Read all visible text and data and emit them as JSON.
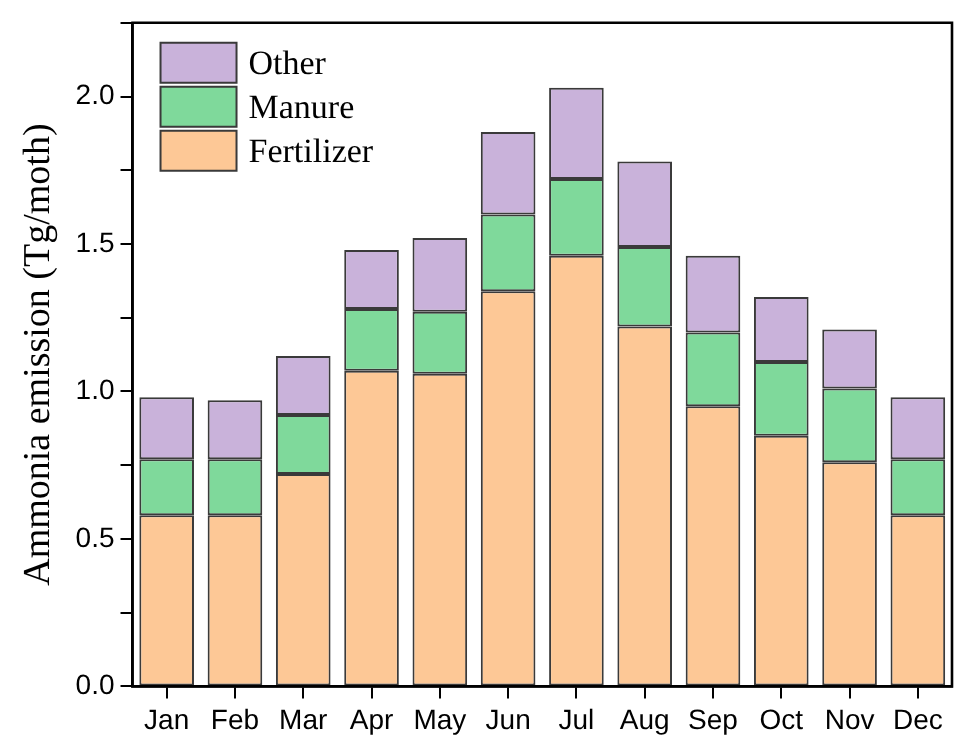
{
  "chart_data": {
    "type": "bar",
    "stacked": true,
    "ylabel": "Ammonia emission (Tg/moth)",
    "categories": [
      "Jan",
      "Feb",
      "Mar",
      "Apr",
      "May",
      "Jun",
      "Jul",
      "Aug",
      "Sep",
      "Oct",
      "Nov",
      "Dec"
    ],
    "series": [
      {
        "name": "Fertilizer",
        "color": "#fdc896",
        "values": [
          0.58,
          0.58,
          0.72,
          1.07,
          1.06,
          1.34,
          1.46,
          1.22,
          0.95,
          0.85,
          0.76,
          0.58
        ]
      },
      {
        "name": "Manure",
        "color": "#7fd99b",
        "values": [
          0.19,
          0.19,
          0.2,
          0.21,
          0.21,
          0.26,
          0.26,
          0.27,
          0.25,
          0.25,
          0.25,
          0.19
        ]
      },
      {
        "name": "Other",
        "color": "#c9b2da",
        "values": [
          0.21,
          0.2,
          0.2,
          0.2,
          0.25,
          0.28,
          0.31,
          0.29,
          0.26,
          0.22,
          0.2,
          0.21
        ]
      }
    ],
    "ylim": [
      0,
      2.25
    ],
    "yticks": [
      {
        "value": 0,
        "label": "0.0"
      },
      {
        "value": 0.25,
        "label": null
      },
      {
        "value": 0.5,
        "label": "0.5"
      },
      {
        "value": 0.75,
        "label": null
      },
      {
        "value": 1,
        "label": "1.0"
      },
      {
        "value": 1.25,
        "label": null
      },
      {
        "value": 1.5,
        "label": "1.5"
      },
      {
        "value": 1.75,
        "label": null
      },
      {
        "value": 2,
        "label": "2.0"
      },
      {
        "value": 2.25,
        "label": null
      }
    ],
    "grid": false,
    "legend": "top left"
  }
}
